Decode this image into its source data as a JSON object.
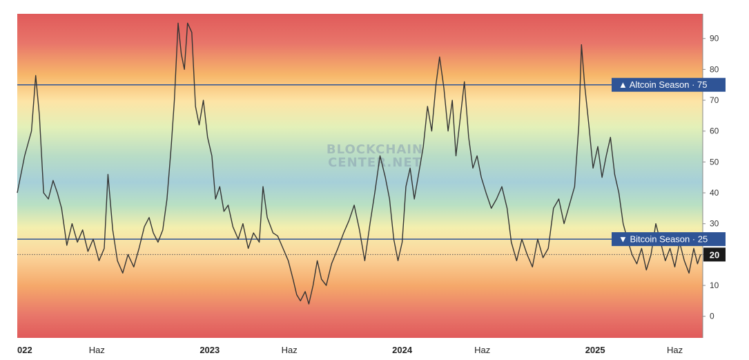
{
  "watermark": {
    "line1": "BLOCKCHAIN",
    "line2": "CENTER.NET"
  },
  "colors": {
    "line": "#333333",
    "threshold_line": "#2f5496",
    "badge_bg": "#2f5496",
    "current_badge_bg": "#1a1a1a",
    "band_red": "#e05a5a",
    "band_orange": "#f7b76a",
    "band_yellow": "#fbe8a8",
    "band_green": "#bfe3c0",
    "band_blue": "#a9d1db"
  },
  "chart_data": {
    "type": "line",
    "ylim": [
      -7,
      98
    ],
    "yticks": [
      0,
      10,
      20,
      30,
      40,
      50,
      60,
      70,
      80,
      90
    ],
    "x_range": [
      "2022-01-01",
      "2025-07-24"
    ],
    "x_labels": [
      {
        "text": "022",
        "date": "2022-01-01",
        "kind": "year"
      },
      {
        "text": "Haz",
        "date": "2022-06-01",
        "kind": "month"
      },
      {
        "text": "2023",
        "date": "2023-01-01",
        "kind": "year"
      },
      {
        "text": "Haz",
        "date": "2023-06-01",
        "kind": "month"
      },
      {
        "text": "2024",
        "date": "2024-01-01",
        "kind": "year"
      },
      {
        "text": "Haz",
        "date": "2024-06-01",
        "kind": "month"
      },
      {
        "text": "2025",
        "date": "2025-01-01",
        "kind": "year"
      },
      {
        "text": "Haz",
        "date": "2025-06-01",
        "kind": "month"
      }
    ],
    "thresholds": [
      {
        "label": "▲ Altcoin Season",
        "value": 75
      },
      {
        "label": "▼ Bitcoin Season",
        "value": 25
      }
    ],
    "current": {
      "label": "20",
      "value": 20
    },
    "series": [
      {
        "points": [
          [
            "2022-01-01",
            40
          ],
          [
            "2022-01-15",
            52
          ],
          [
            "2022-01-28",
            60
          ],
          [
            "2022-02-05",
            78
          ],
          [
            "2022-02-12",
            65
          ],
          [
            "2022-02-20",
            40
          ],
          [
            "2022-03-01",
            38
          ],
          [
            "2022-03-10",
            44
          ],
          [
            "2022-03-18",
            40
          ],
          [
            "2022-03-26",
            35
          ],
          [
            "2022-04-05",
            23
          ],
          [
            "2022-04-15",
            30
          ],
          [
            "2022-04-25",
            24
          ],
          [
            "2022-05-05",
            28
          ],
          [
            "2022-05-15",
            21
          ],
          [
            "2022-05-25",
            25
          ],
          [
            "2022-06-05",
            18
          ],
          [
            "2022-06-15",
            22
          ],
          [
            "2022-06-22",
            46
          ],
          [
            "2022-07-01",
            28
          ],
          [
            "2022-07-10",
            18
          ],
          [
            "2022-07-20",
            14
          ],
          [
            "2022-07-30",
            20
          ],
          [
            "2022-08-10",
            16
          ],
          [
            "2022-08-20",
            22
          ],
          [
            "2022-08-30",
            29
          ],
          [
            "2022-09-08",
            32
          ],
          [
            "2022-09-16",
            27
          ],
          [
            "2022-09-25",
            24
          ],
          [
            "2022-10-04",
            28
          ],
          [
            "2022-10-12",
            38
          ],
          [
            "2022-10-20",
            55
          ],
          [
            "2022-10-26",
            70
          ],
          [
            "2022-11-02",
            95
          ],
          [
            "2022-11-08",
            85
          ],
          [
            "2022-11-14",
            80
          ],
          [
            "2022-11-20",
            95
          ],
          [
            "2022-11-28",
            92
          ],
          [
            "2022-12-05",
            68
          ],
          [
            "2022-12-12",
            62
          ],
          [
            "2022-12-20",
            70
          ],
          [
            "2022-12-28",
            58
          ],
          [
            "2023-01-05",
            52
          ],
          [
            "2023-01-12",
            38
          ],
          [
            "2023-01-20",
            42
          ],
          [
            "2023-01-28",
            34
          ],
          [
            "2023-02-05",
            36
          ],
          [
            "2023-02-14",
            29
          ],
          [
            "2023-02-24",
            25
          ],
          [
            "2023-03-05",
            30
          ],
          [
            "2023-03-15",
            22
          ],
          [
            "2023-03-25",
            27
          ],
          [
            "2023-04-05",
            24
          ],
          [
            "2023-04-12",
            42
          ],
          [
            "2023-04-20",
            32
          ],
          [
            "2023-05-01",
            27
          ],
          [
            "2023-05-10",
            26
          ],
          [
            "2023-05-20",
            22
          ],
          [
            "2023-05-30",
            18
          ],
          [
            "2023-06-08",
            12
          ],
          [
            "2023-06-15",
            7
          ],
          [
            "2023-06-22",
            5
          ],
          [
            "2023-07-01",
            8
          ],
          [
            "2023-07-08",
            4
          ],
          [
            "2023-07-16",
            10
          ],
          [
            "2023-07-24",
            18
          ],
          [
            "2023-08-01",
            12
          ],
          [
            "2023-08-10",
            10
          ],
          [
            "2023-08-20",
            17
          ],
          [
            "2023-09-01",
            22
          ],
          [
            "2023-09-12",
            27
          ],
          [
            "2023-09-22",
            31
          ],
          [
            "2023-10-02",
            36
          ],
          [
            "2023-10-12",
            28
          ],
          [
            "2023-10-22",
            18
          ],
          [
            "2023-11-01",
            30
          ],
          [
            "2023-11-10",
            40
          ],
          [
            "2023-11-20",
            52
          ],
          [
            "2023-11-30",
            45
          ],
          [
            "2023-12-08",
            38
          ],
          [
            "2023-12-16",
            25
          ],
          [
            "2023-12-24",
            18
          ],
          [
            "2024-01-01",
            24
          ],
          [
            "2024-01-08",
            42
          ],
          [
            "2024-01-16",
            48
          ],
          [
            "2024-01-24",
            38
          ],
          [
            "2024-02-02",
            47
          ],
          [
            "2024-02-10",
            55
          ],
          [
            "2024-02-18",
            68
          ],
          [
            "2024-02-26",
            60
          ],
          [
            "2024-03-05",
            75
          ],
          [
            "2024-03-12",
            84
          ],
          [
            "2024-03-20",
            74
          ],
          [
            "2024-03-28",
            60
          ],
          [
            "2024-04-05",
            70
          ],
          [
            "2024-04-12",
            52
          ],
          [
            "2024-04-20",
            64
          ],
          [
            "2024-04-28",
            76
          ],
          [
            "2024-05-06",
            58
          ],
          [
            "2024-05-14",
            48
          ],
          [
            "2024-05-22",
            52
          ],
          [
            "2024-05-30",
            45
          ],
          [
            "2024-06-08",
            40
          ],
          [
            "2024-06-18",
            35
          ],
          [
            "2024-06-28",
            38
          ],
          [
            "2024-07-08",
            42
          ],
          [
            "2024-07-18",
            35
          ],
          [
            "2024-07-26",
            24
          ],
          [
            "2024-08-05",
            18
          ],
          [
            "2024-08-15",
            25
          ],
          [
            "2024-08-25",
            20
          ],
          [
            "2024-09-04",
            16
          ],
          [
            "2024-09-14",
            25
          ],
          [
            "2024-09-24",
            19
          ],
          [
            "2024-10-04",
            22
          ],
          [
            "2024-10-14",
            35
          ],
          [
            "2024-10-24",
            38
          ],
          [
            "2024-11-03",
            30
          ],
          [
            "2024-11-13",
            36
          ],
          [
            "2024-11-23",
            42
          ],
          [
            "2024-12-01",
            62
          ],
          [
            "2024-12-06",
            88
          ],
          [
            "2024-12-12",
            75
          ],
          [
            "2024-12-20",
            62
          ],
          [
            "2024-12-28",
            48
          ],
          [
            "2025-01-06",
            55
          ],
          [
            "2025-01-14",
            45
          ],
          [
            "2025-01-22",
            52
          ],
          [
            "2025-01-30",
            58
          ],
          [
            "2025-02-07",
            46
          ],
          [
            "2025-02-15",
            40
          ],
          [
            "2025-02-23",
            30
          ],
          [
            "2025-03-03",
            25
          ],
          [
            "2025-03-12",
            20
          ],
          [
            "2025-03-21",
            17
          ],
          [
            "2025-03-30",
            22
          ],
          [
            "2025-04-08",
            15
          ],
          [
            "2025-04-17",
            20
          ],
          [
            "2025-04-26",
            30
          ],
          [
            "2025-05-05",
            24
          ],
          [
            "2025-05-14",
            18
          ],
          [
            "2025-05-23",
            22
          ],
          [
            "2025-06-01",
            16
          ],
          [
            "2025-06-10",
            24
          ],
          [
            "2025-06-19",
            18
          ],
          [
            "2025-06-28",
            14
          ],
          [
            "2025-07-07",
            22
          ],
          [
            "2025-07-14",
            17
          ],
          [
            "2025-07-20",
            20
          ]
        ]
      }
    ]
  }
}
